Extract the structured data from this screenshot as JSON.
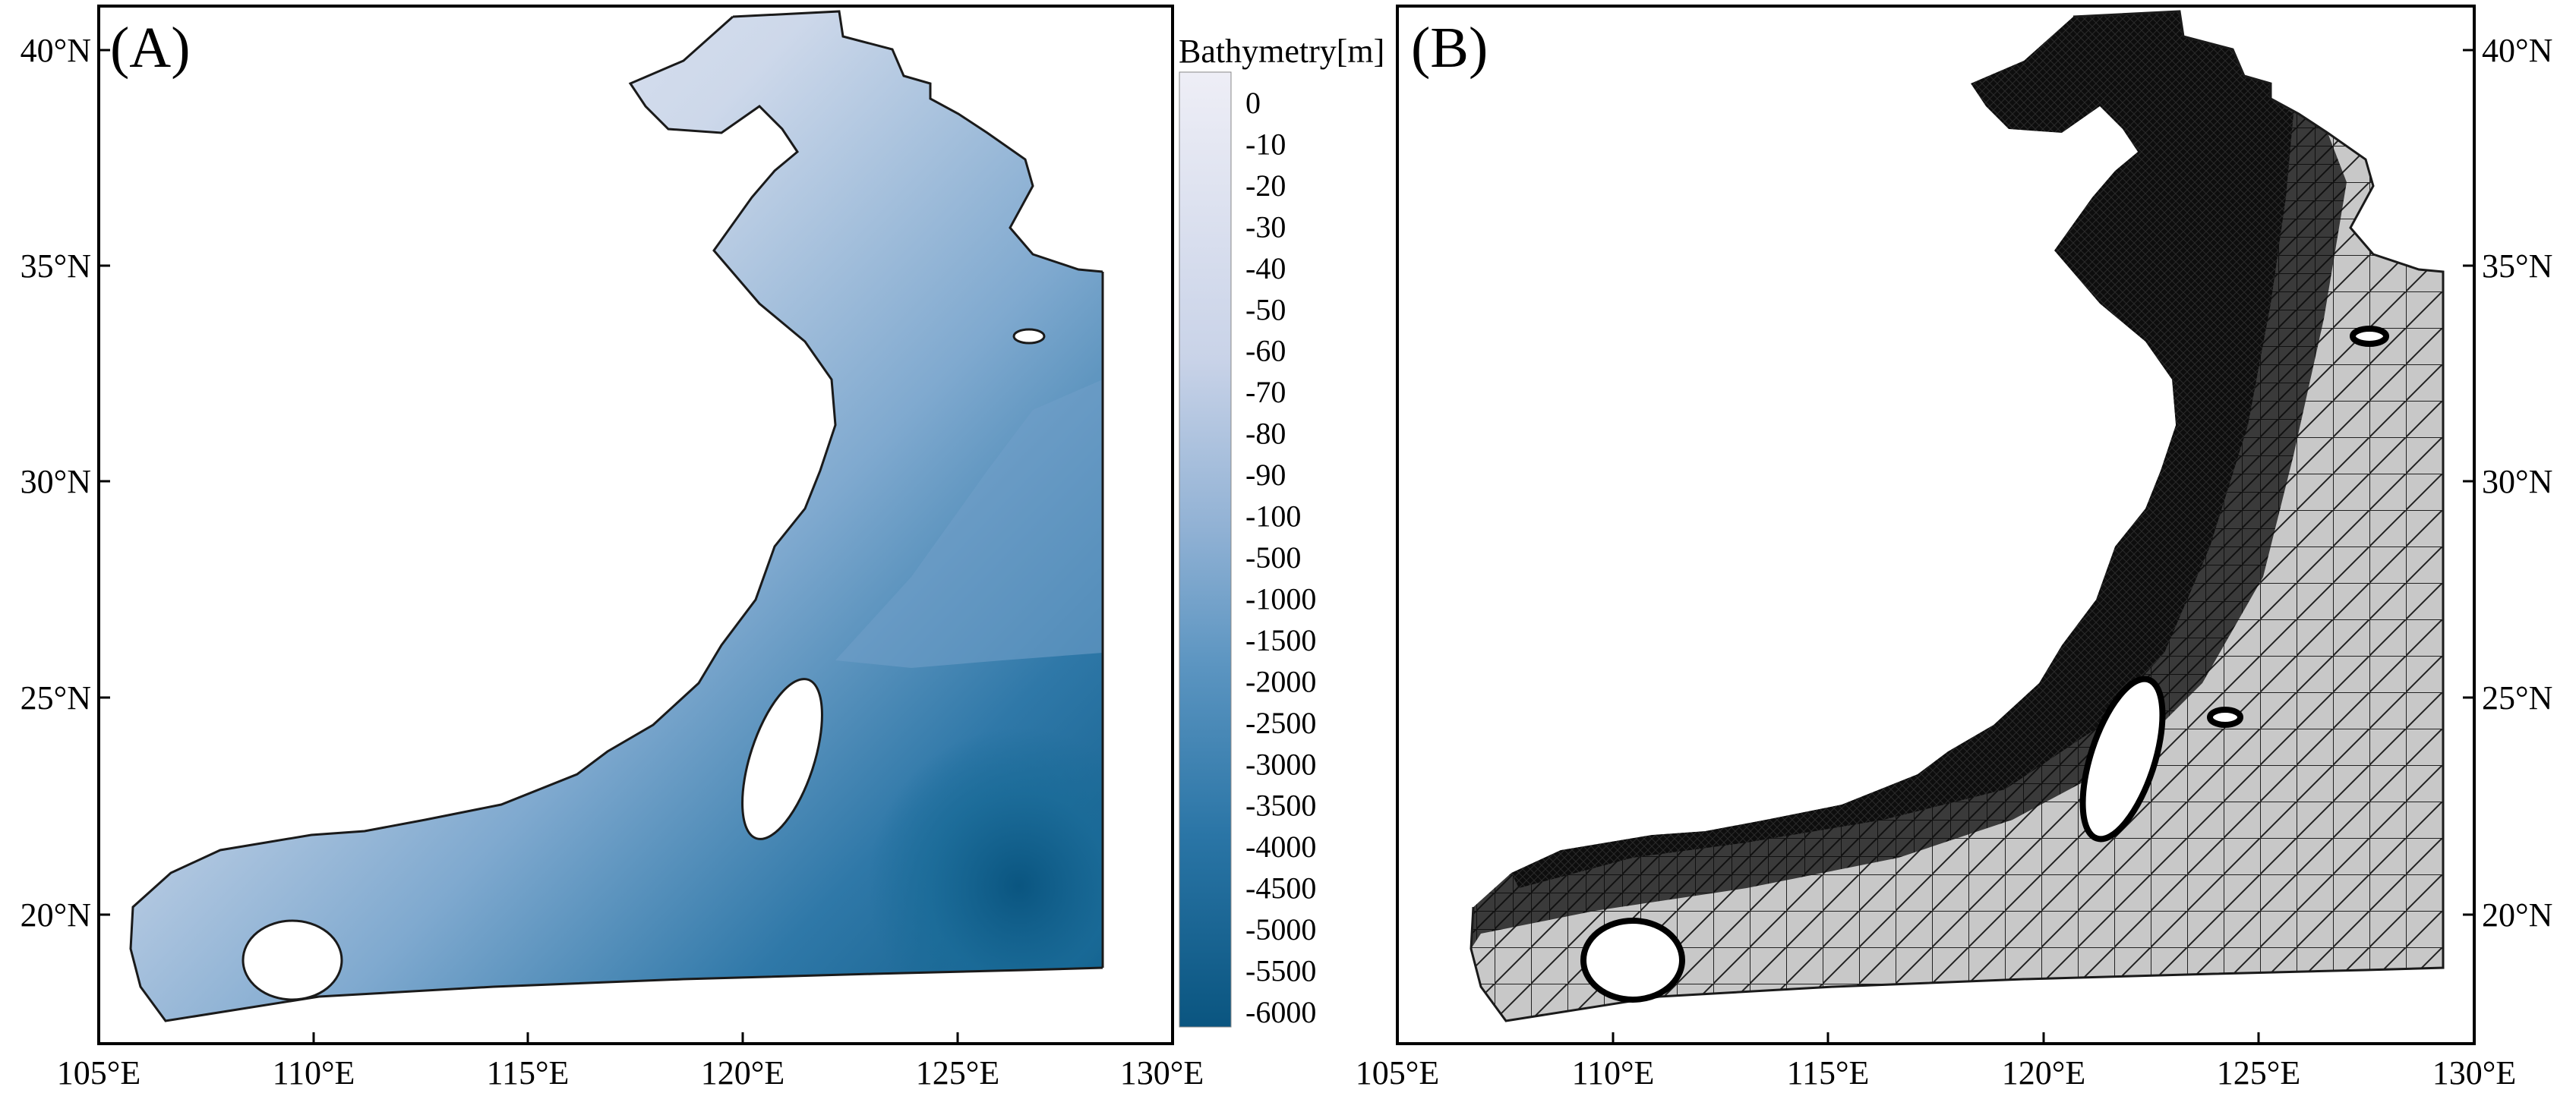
{
  "panels": [
    {
      "label": "(A)",
      "x_ticks": [
        "105°E",
        "110°E",
        "115°E",
        "120°E",
        "125°E",
        "130°E"
      ],
      "y_ticks": [
        "20°N",
        "25°N",
        "30°N",
        "35°N",
        "40°N"
      ],
      "y_axis_side": "left",
      "content": "bathymetry shaded map"
    },
    {
      "label": "(B)",
      "x_ticks": [
        "105°E",
        "110°E",
        "115°E",
        "120°E",
        "125°E",
        "130°E"
      ],
      "y_ticks": [
        "20°N",
        "25°N",
        "30°N",
        "35°N",
        "40°N"
      ],
      "y_axis_side": "right",
      "content": "unstructured triangular model mesh"
    }
  ],
  "colorbar": {
    "title": "Bathymetry[m]",
    "levels": [
      "0",
      "-10",
      "-20",
      "-30",
      "-40",
      "-50",
      "-60",
      "-70",
      "-80",
      "-90",
      "-100",
      "-500",
      "-1000",
      "-1500",
      "-2000",
      "-2500",
      "-3000",
      "-3500",
      "-4000",
      "-4500",
      "-5000",
      "-5500",
      "-6000"
    ],
    "color_shallow": "#eeeef6",
    "color_deep": "#0a5580"
  },
  "colors": {
    "land": "#ffffff",
    "coastline": "#1a1a1a",
    "mesh_dense": "#0d0d0d",
    "mesh_sparse": "#b9b9b9"
  }
}
